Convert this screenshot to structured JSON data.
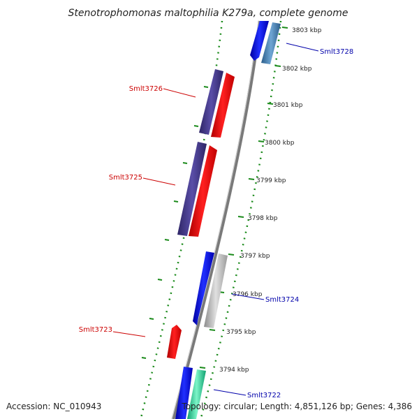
{
  "title": "Stenotrophomonas maltophilia K279a, complete genome",
  "footer": {
    "accession": "Accession: NC_010943",
    "topology": "Topology: circular; Length: 4,851,126 bp; Genes: 4,386"
  },
  "scale_ticks": [
    "3803 kbp",
    "3802 kbp",
    "3801 kbp",
    "3800 kbp",
    "3799 kbp",
    "3798 kbp",
    "3797 kbp",
    "3796 kbp",
    "3795 kbp",
    "3794 kbp"
  ],
  "gene_labels": [
    {
      "name": "Smlt3728",
      "color": "#0000aa"
    },
    {
      "name": "Smlt3726",
      "color": "#cc0000"
    },
    {
      "name": "Smlt3725",
      "color": "#cc0000"
    },
    {
      "name": "Smlt3724",
      "color": "#0000aa"
    },
    {
      "name": "Smlt3723",
      "color": "#cc0000"
    },
    {
      "name": "Smlt3722",
      "color": "#0000aa"
    }
  ],
  "colors": {
    "forward_cds": "#ff0000",
    "reverse_cds": "#0000ff",
    "feature_purple": "#4b3f8f",
    "feature_steel": "#4a86b8",
    "feature_grey": "#bdbdbd",
    "feature_mint": "#33e0a8",
    "backbone": "#888888",
    "tick_green": "#1a8a1a"
  }
}
